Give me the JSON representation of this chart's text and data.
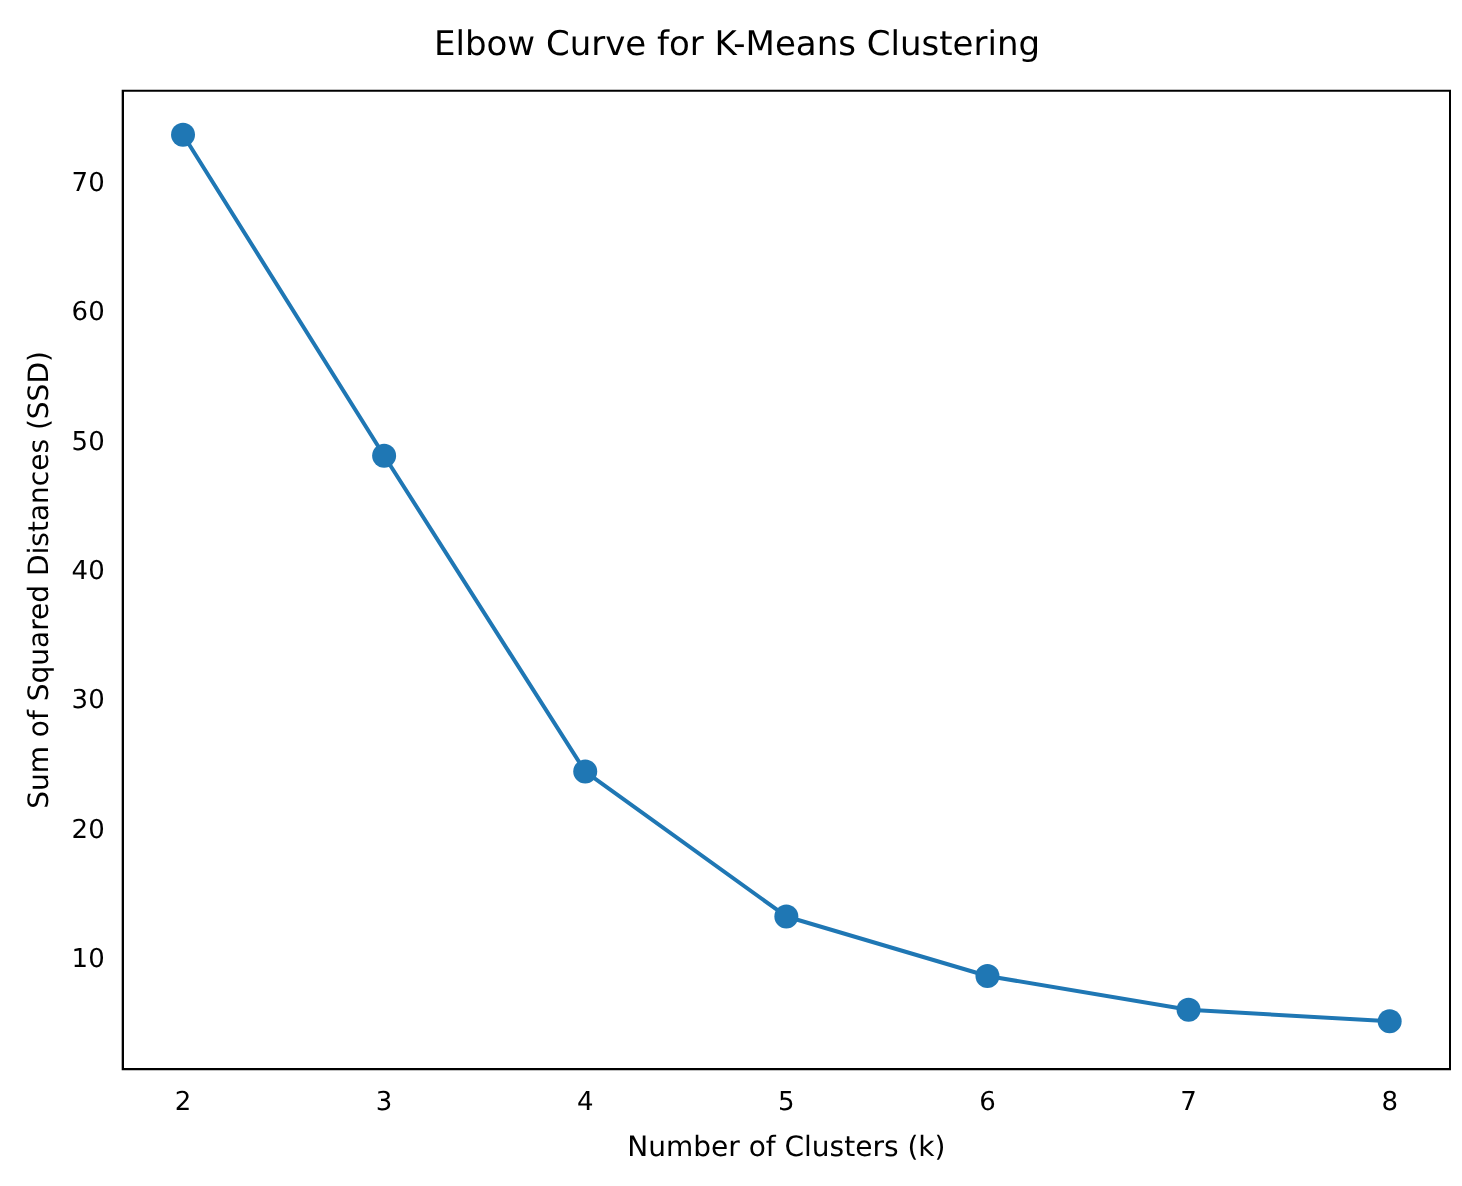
{
  "chart_data": {
    "type": "line",
    "title": "Elbow Curve for K-Means Clustering",
    "xlabel": "Number of Clusters (k)",
    "ylabel": "Sum of Squared Distances (SSD)",
    "x": [
      2,
      3,
      4,
      5,
      6,
      7,
      8
    ],
    "series": [
      {
        "color": "#1f77b4",
        "values": [
          73.8,
          49.0,
          24.6,
          13.4,
          8.8,
          6.2,
          5.3
        ]
      }
    ],
    "xlim": [
      1.7,
      8.3
    ],
    "xticks": [
      2,
      3,
      4,
      5,
      6,
      7,
      8
    ],
    "ylim": [
      1.6,
      77.2
    ],
    "yticks": [
      10,
      20,
      30,
      40,
      50,
      60,
      70
    ],
    "grid": false,
    "legend": false,
    "marker": "circle",
    "line_style": "solid"
  }
}
